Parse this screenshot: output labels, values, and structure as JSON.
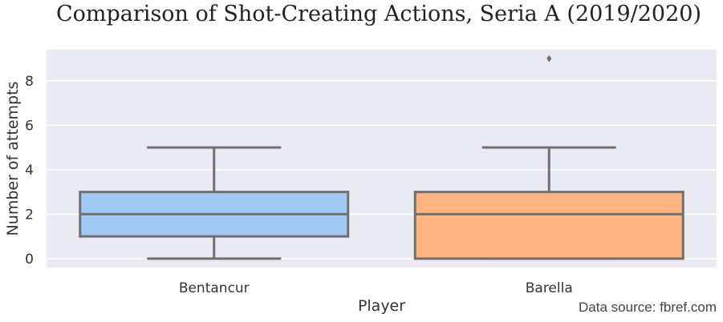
{
  "chart_data": {
    "type": "box",
    "title": "Comparison of Shot-Creating Actions, Seria A (2019/2020)",
    "xlabel": "Player",
    "ylabel": "Number of attempts",
    "ylim": [
      -0.4,
      9.4
    ],
    "yticks": [
      0,
      2,
      4,
      6,
      8
    ],
    "grid": true,
    "categories": [
      "Bentancur",
      "Barella"
    ],
    "boxes": [
      {
        "name": "Bentancur",
        "whisker_low": 0,
        "q1": 1,
        "median": 2,
        "q3": 3,
        "whisker_high": 5,
        "outliers": [],
        "color": "#a1c9f4"
      },
      {
        "name": "Barella",
        "whisker_low": 0,
        "q1": 0,
        "median": 2,
        "q3": 3,
        "whisker_high": 5,
        "outliers": [
          9
        ],
        "color": "#ffb482"
      }
    ],
    "annotation": "Data source: fbref.com"
  },
  "colors": {
    "plot_background": "#eaeaf2",
    "grid": "#ffffff",
    "line": "#707070"
  }
}
